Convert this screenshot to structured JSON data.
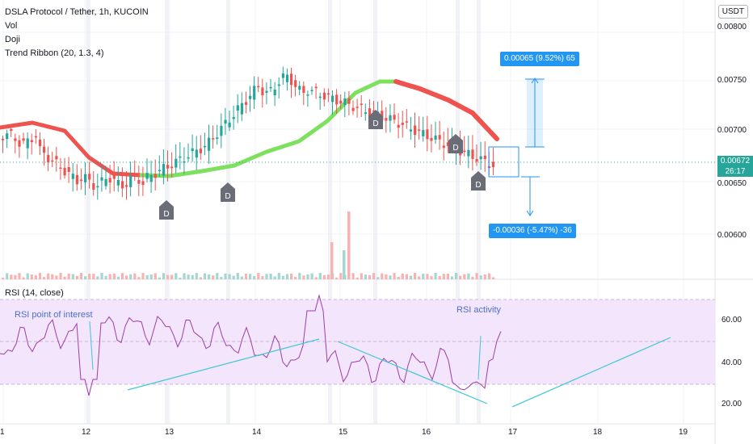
{
  "header": {
    "title": "DSLA Protocol / Tether, 1h, KUCOIN",
    "indicators": [
      "Vol",
      "Doji",
      "Trend Ribbon (20, 1.3, 4)"
    ]
  },
  "currency_button": "USDT",
  "price_axis": [
    "0.00800",
    "0.00750",
    "0.00700",
    "0.00650",
    "0.00600"
  ],
  "current_price": "0.00672",
  "countdown": "26:17",
  "doji_label": "D",
  "measure": {
    "up_label": "0.00065 (9.52%) 65",
    "down_label": "-0.00036 (-5.47%) -36"
  },
  "rsi": {
    "title": "RSI (14, close)",
    "axis": [
      "60.00",
      "40.00",
      "20.00"
    ],
    "annotation_left": "RSI point of interest",
    "annotation_right": "RSI activity",
    "upper_band": 70,
    "lower_band": 30
  },
  "time_axis": [
    "1",
    "12",
    "13",
    "14",
    "15",
    "16",
    "17",
    "18",
    "19"
  ],
  "colors": {
    "up": "#26a69a",
    "down": "#ef5350",
    "ribbon_bear": "#ef5350",
    "ribbon_bull": "#7ee05f",
    "rsi_line": "#9c3ea5",
    "rsi_band": "#f3e5fb",
    "accent": "#2196f3",
    "trendline": "#3cc7d6"
  }
}
